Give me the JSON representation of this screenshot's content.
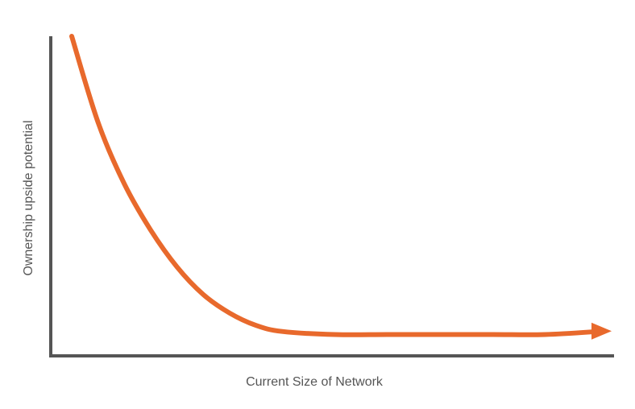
{
  "chart_data": {
    "type": "line",
    "title": "",
    "xlabel": "Current Size of Network",
    "ylabel": "Ownership upside potential",
    "axis_ticks": "none",
    "grid": false,
    "legend": "none",
    "series": [
      {
        "shape": "exponential decay",
        "x": [
          0,
          0.05,
          0.1,
          0.15,
          0.2,
          0.25,
          0.3,
          0.35,
          0.4,
          0.5,
          0.6,
          0.7,
          0.8,
          0.9,
          1.0
        ],
        "y": [
          1.0,
          0.72,
          0.52,
          0.37,
          0.25,
          0.16,
          0.1,
          0.06,
          0.04,
          0.03,
          0.03,
          0.03,
          0.03,
          0.03,
          0.04
        ],
        "end_marker": "arrow"
      }
    ],
    "colors": {
      "curve": "#e8692c",
      "axes": "#555555",
      "axis_text": "#555555",
      "background": "#ffffff"
    }
  }
}
